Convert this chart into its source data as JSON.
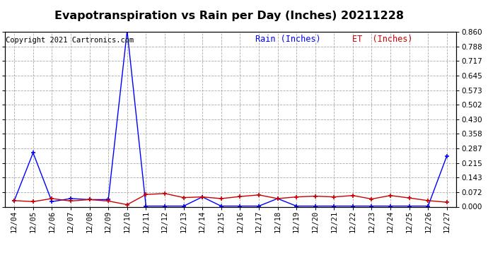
{
  "title": "Evapotranspiration vs Rain per Day (Inches) 20211228",
  "copyright": "Copyright 2021 Cartronics.com",
  "legend_rain": "Rain (Inches)",
  "legend_et": "ET  (Inches)",
  "x_labels": [
    "12/04",
    "12/05",
    "12/06",
    "12/07",
    "12/08",
    "12/09",
    "12/10",
    "12/11",
    "12/12",
    "12/13",
    "12/14",
    "12/15",
    "12/16",
    "12/17",
    "12/18",
    "12/19",
    "12/20",
    "12/21",
    "12/22",
    "12/23",
    "12/24",
    "12/25",
    "12/26",
    "12/27"
  ],
  "rain_values": [
    0.03,
    0.265,
    0.025,
    0.04,
    0.035,
    0.035,
    0.865,
    0.003,
    0.003,
    0.003,
    0.048,
    0.003,
    0.003,
    0.003,
    0.04,
    0.003,
    0.003,
    0.003,
    0.003,
    0.003,
    0.003,
    0.003,
    0.003,
    0.25
  ],
  "et_values": [
    0.03,
    0.025,
    0.04,
    0.028,
    0.035,
    0.028,
    0.01,
    0.06,
    0.065,
    0.045,
    0.048,
    0.04,
    0.05,
    0.058,
    0.04,
    0.048,
    0.052,
    0.048,
    0.055,
    0.038,
    0.055,
    0.043,
    0.03,
    0.022
  ],
  "rain_color": "#0000ff",
  "et_color": "#cc0000",
  "ylim_min": 0.0,
  "ylim_max": 0.86,
  "yticks": [
    0.0,
    0.072,
    0.143,
    0.215,
    0.287,
    0.358,
    0.43,
    0.502,
    0.573,
    0.645,
    0.717,
    0.788,
    0.86
  ],
  "background_color": "#ffffff",
  "grid_color": "#aaaaaa",
  "title_fontsize": 11.5,
  "copyright_fontsize": 7.5,
  "legend_fontsize": 8.5,
  "tick_fontsize": 7.5
}
